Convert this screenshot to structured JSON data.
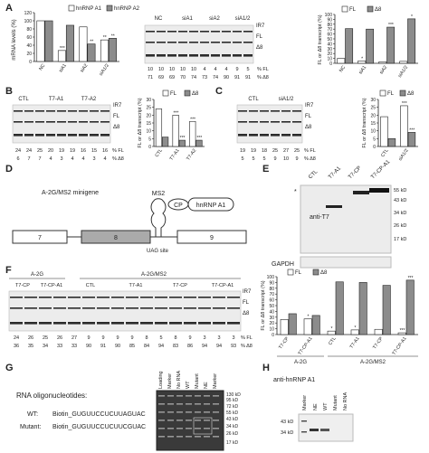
{
  "panels": {
    "A": "A",
    "B": "B",
    "C": "C",
    "D": "D",
    "E": "E",
    "F": "F",
    "G": "G",
    "H": "H"
  },
  "gel_bands": {
    "ir7": "IR7",
    "fl": "FL",
    "d8": "Δ8"
  },
  "row_labels": {
    "fl_pct": "% FL",
    "d8_pct": "% Δ8"
  },
  "axis_labels": {
    "mrna": "mRNA levels (%)",
    "fl_d8": "FL or Δ8 transcript (%)"
  },
  "legend": {
    "hnrnp_a1": "hnRNP A1",
    "hnrnp_a2": "hnRNP A2",
    "fl": "FL",
    "d8": "Δ8"
  },
  "panel_a": {
    "gel_lanes": [
      "NC",
      "siA1",
      "siA2",
      "siA1/2"
    ],
    "fl_row": [
      "10",
      "10",
      "10",
      "10",
      "10",
      "4",
      "4",
      "4",
      "9",
      "5"
    ],
    "d8_row": [
      "71",
      "69",
      "69",
      "70",
      "74",
      "73",
      "74",
      "90",
      "91",
      "91"
    ]
  },
  "panel_b": {
    "gel_lanes": [
      "CTL",
      "T7-A1",
      "T7-A2"
    ],
    "fl_row": [
      "24",
      "24",
      "25",
      "20",
      "19",
      "19",
      "16",
      "15",
      "16"
    ],
    "d8_row": [
      "6",
      "7",
      "7",
      "4",
      "3",
      "4",
      "4",
      "3",
      "4"
    ]
  },
  "panel_c": {
    "gel_lanes": [
      "CTL",
      "siA1/2"
    ],
    "fl_row": [
      "19",
      "19",
      "18",
      "25",
      "27",
      "25"
    ],
    "d8_row": [
      "5",
      "5",
      "5",
      "9",
      "10",
      "9"
    ]
  },
  "panel_d": {
    "title": "A-2G/MS2 minigene",
    "ms2": "MS2",
    "cp": "CP",
    "protein": "hnRNP A1",
    "exons": [
      "7",
      "8",
      "9"
    ],
    "uag": "UAG site"
  },
  "panel_e": {
    "lanes": [
      "CTL",
      "T7-A1",
      "T7-CP",
      "T7-CP-A1"
    ],
    "markers": [
      "55 kD",
      "43 kD",
      "34 kD",
      "26 kD",
      "17 kD"
    ],
    "antibody": "anti-T7",
    "loading": "GAPDH"
  },
  "panel_f": {
    "group1": "A-2G",
    "group2": "A-2G/MS2",
    "sub_a2g": [
      "T7-CP",
      "T7-CP-A1"
    ],
    "sub_ms2": [
      "CTL",
      "T7-A1",
      "T7-CP",
      "T7-CP-A1"
    ],
    "fl_row": [
      "24",
      "26",
      "25",
      "26",
      "27",
      "9",
      "9",
      "9",
      "9",
      "8",
      "5",
      "8",
      "9",
      "3",
      "3",
      "3"
    ],
    "d8_row": [
      "36",
      "35",
      "34",
      "33",
      "33",
      "90",
      "91",
      "90",
      "85",
      "84",
      "94",
      "83",
      "86",
      "94",
      "94",
      "93"
    ],
    "chart_groups": [
      "A-2G",
      "A-2G/MS2"
    ]
  },
  "panel_g": {
    "title": "RNA oligonucleotides:",
    "wt_label": "WT:",
    "wt_seq": "Biotin_GUGUUCCUCUUAGUAC",
    "mut_label": "Mutant:",
    "mut_seq": "Biotin_GUGUUCCUCUUCGUAC",
    "lanes": [
      "Loading",
      "Marker",
      "No RNA",
      "WT",
      "Mutant",
      "NE",
      "Marker"
    ],
    "markers": [
      "130 kD",
      "95 kD",
      "72 kD",
      "55 kD",
      "43 kD",
      "34 kD",
      "26 kD",
      "17 kD"
    ]
  },
  "panel_h": {
    "title": "anti-hnRNP A1",
    "lanes": [
      "Marker",
      "NE",
      "WT",
      "Mutant",
      "No RNA"
    ],
    "markers": [
      "43 kD",
      "34 kD"
    ]
  },
  "chart_data": [
    {
      "type": "bar",
      "id": "A-mrna",
      "categories": [
        "NC",
        "siA1",
        "siA2",
        "siA1/2"
      ],
      "series": [
        {
          "name": "hnRNP A1",
          "values": [
            100,
            27,
            85,
            53
          ]
        },
        {
          "name": "hnRNP A2",
          "values": [
            100,
            89,
            43,
            57
          ]
        }
      ],
      "ylim": [
        0,
        120
      ],
      "ticks": [
        0,
        20,
        40,
        60,
        80,
        100,
        120
      ],
      "sig": [
        "",
        "***",
        "",
        "**",
        "***",
        "**",
        "**"
      ]
    },
    {
      "type": "bar",
      "id": "A-ratio",
      "categories": [
        "NC",
        "siA1",
        "siA2",
        "siA1/2"
      ],
      "series": [
        {
          "name": "FL",
          "values": [
            10,
            5,
            3,
            4
          ]
        },
        {
          "name": "Δ8",
          "values": [
            71,
            70,
            74,
            91
          ]
        }
      ],
      "ylim": [
        0,
        100
      ],
      "ticks": [
        0,
        10,
        20,
        30,
        40,
        50,
        60,
        70,
        80,
        90,
        100
      ],
      "sig": [
        "*",
        "",
        "***",
        "*"
      ]
    },
    {
      "type": "bar",
      "id": "B-ratio",
      "categories": [
        "CTL",
        "T7-A1",
        "T7-A2"
      ],
      "series": [
        {
          "name": "FL",
          "values": [
            24,
            20,
            16
          ]
        },
        {
          "name": "Δ8",
          "values": [
            6,
            4,
            4
          ]
        }
      ],
      "ylim": [
        0,
        30
      ],
      "ticks": [
        0,
        5,
        10,
        15,
        20,
        25,
        30
      ],
      "sig": [
        "***",
        "***",
        "***",
        "***"
      ]
    },
    {
      "type": "bar",
      "id": "C-ratio",
      "categories": [
        "CTL",
        "siA1/2"
      ],
      "series": [
        {
          "name": "FL",
          "values": [
            19,
            26
          ]
        },
        {
          "name": "Δ8",
          "values": [
            5,
            9
          ]
        }
      ],
      "ylim": [
        0,
        30
      ],
      "ticks": [
        0,
        5,
        10,
        15,
        20,
        25,
        30
      ],
      "sig": [
        "***",
        "***"
      ]
    },
    {
      "type": "bar",
      "id": "F-ratio",
      "categories": [
        "T7-CP",
        "T7-CP-A1",
        "CTL",
        "T7-A1",
        "T7-CP",
        "T7-CP-A1"
      ],
      "series": [
        {
          "name": "FL",
          "values": [
            26,
            27,
            6,
            8,
            9,
            3
          ]
        },
        {
          "name": "Δ8",
          "values": [
            36,
            33,
            91,
            90,
            85,
            94
          ]
        }
      ],
      "ylim": [
        0,
        100
      ],
      "ticks": [
        0,
        10,
        20,
        30,
        40,
        50,
        60,
        70,
        80,
        90,
        100
      ],
      "sig": [
        "*",
        "*",
        "***",
        "***"
      ]
    }
  ]
}
